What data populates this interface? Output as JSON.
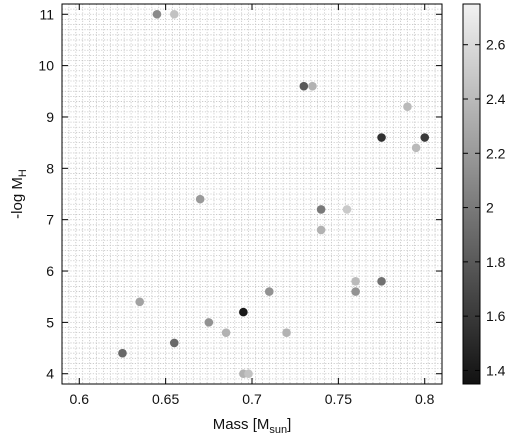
{
  "chart_data": {
    "type": "scatter",
    "xlabel": "Mass [M",
    "xlabel_sub": "sun",
    "xlabel_suffix": "]",
    "ylabel": "-log M",
    "ylabel_sub": "H",
    "xlim": [
      0.59,
      0.81
    ],
    "ylim": [
      3.8,
      11.2
    ],
    "xticks": [
      0.6,
      0.65,
      0.7,
      0.75,
      0.8
    ],
    "xtick_labels": [
      "0.6",
      "0.65",
      "0.7",
      "0.75",
      "0.8"
    ],
    "yticks": [
      4,
      5,
      6,
      7,
      8,
      9,
      10,
      11
    ],
    "ytick_labels": [
      "4",
      "5",
      "6",
      "7",
      "8",
      "9",
      "10",
      "11"
    ],
    "grid": true,
    "colorbar": {
      "range": [
        1.35,
        2.75
      ],
      "ticks": [
        1.4,
        1.6,
        1.8,
        2,
        2.2,
        2.4,
        2.6
      ],
      "tick_labels": [
        "1.4",
        "1.6",
        "1.8",
        "2",
        "2.2",
        "2.4",
        "2.6"
      ],
      "colormap": "gray"
    },
    "points": [
      {
        "x": 0.645,
        "y": 11.0,
        "c": 2.1
      },
      {
        "x": 0.655,
        "y": 11.0,
        "c": 2.45
      },
      {
        "x": 0.73,
        "y": 9.6,
        "c": 1.8
      },
      {
        "x": 0.735,
        "y": 9.6,
        "c": 2.35
      },
      {
        "x": 0.79,
        "y": 9.2,
        "c": 2.4
      },
      {
        "x": 0.775,
        "y": 8.6,
        "c": 1.55
      },
      {
        "x": 0.8,
        "y": 8.6,
        "c": 1.6
      },
      {
        "x": 0.795,
        "y": 8.4,
        "c": 2.4
      },
      {
        "x": 0.67,
        "y": 7.4,
        "c": 2.2
      },
      {
        "x": 0.74,
        "y": 7.2,
        "c": 2.0
      },
      {
        "x": 0.755,
        "y": 7.2,
        "c": 2.5
      },
      {
        "x": 0.74,
        "y": 6.8,
        "c": 2.35
      },
      {
        "x": 0.76,
        "y": 5.8,
        "c": 2.4
      },
      {
        "x": 0.775,
        "y": 5.8,
        "c": 1.95
      },
      {
        "x": 0.71,
        "y": 5.6,
        "c": 2.15
      },
      {
        "x": 0.76,
        "y": 5.6,
        "c": 2.15
      },
      {
        "x": 0.635,
        "y": 5.4,
        "c": 2.25
      },
      {
        "x": 0.695,
        "y": 5.2,
        "c": 1.4
      },
      {
        "x": 0.675,
        "y": 5.0,
        "c": 2.15
      },
      {
        "x": 0.685,
        "y": 4.8,
        "c": 2.35
      },
      {
        "x": 0.72,
        "y": 4.8,
        "c": 2.35
      },
      {
        "x": 0.655,
        "y": 4.6,
        "c": 1.9
      },
      {
        "x": 0.625,
        "y": 4.4,
        "c": 1.9
      },
      {
        "x": 0.695,
        "y": 4.0,
        "c": 2.35
      },
      {
        "x": 0.698,
        "y": 4.0,
        "c": 2.45
      }
    ]
  }
}
